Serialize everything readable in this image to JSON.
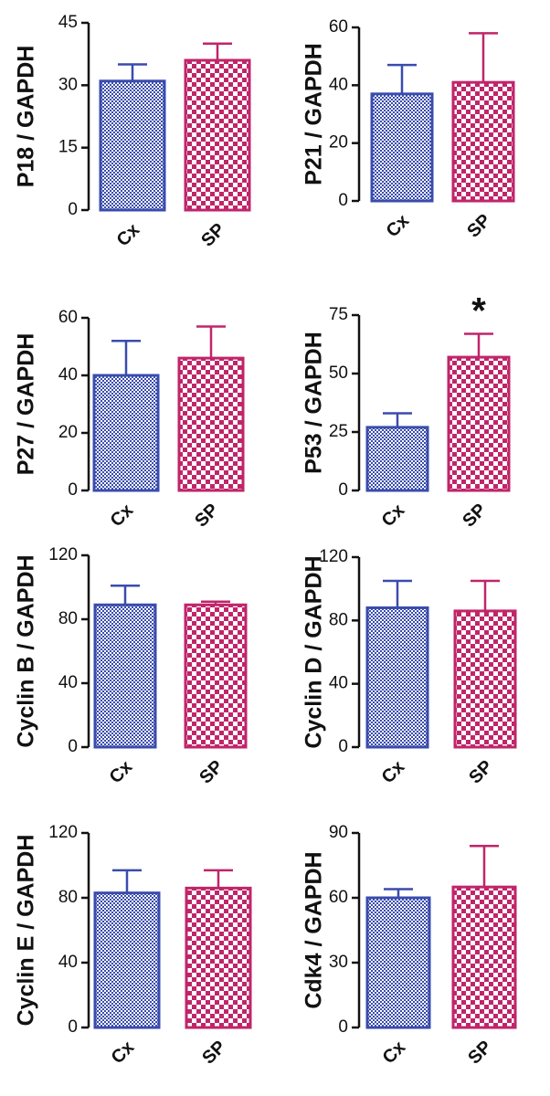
{
  "colors": {
    "cx": "#3a4cad",
    "sp": "#c0256a",
    "axis": "#111111"
  },
  "chart_data": [
    {
      "type": "bar",
      "ylabel": "P18 / GAPDH",
      "categories": [
        "Cx",
        "SP"
      ],
      "values": [
        31,
        36
      ],
      "errors": [
        4,
        4
      ],
      "ylim": [
        0,
        45
      ],
      "yticks": [
        "0",
        "15",
        "30",
        "45"
      ],
      "annotations": []
    },
    {
      "type": "bar",
      "ylabel": "P21 / GAPDH",
      "categories": [
        "Cx",
        "SP"
      ],
      "values": [
        37,
        41
      ],
      "errors": [
        10,
        17
      ],
      "ylim": [
        0,
        60
      ],
      "yticks": [
        "0",
        "20",
        "40",
        "60"
      ],
      "annotations": []
    },
    {
      "type": "bar",
      "ylabel": "P27 / GAPDH",
      "categories": [
        "Cx",
        "SP"
      ],
      "values": [
        40,
        46
      ],
      "errors": [
        12,
        11
      ],
      "ylim": [
        0,
        60
      ],
      "yticks": [
        "0",
        "20",
        "40",
        "60"
      ],
      "annotations": []
    },
    {
      "type": "bar",
      "ylabel": "P53 / GAPDH",
      "categories": [
        "Cx",
        "SP"
      ],
      "values": [
        27,
        57
      ],
      "errors": [
        6,
        10
      ],
      "ylim": [
        0,
        75
      ],
      "yticks": [
        "0",
        "25",
        "50",
        "75"
      ],
      "annotations": [
        "",
        "*"
      ]
    },
    {
      "type": "bar",
      "ylabel": "Cyclin B / GAPDH",
      "categories": [
        "Cx",
        "SP"
      ],
      "values": [
        89,
        89
      ],
      "errors": [
        12,
        2
      ],
      "ylim": [
        0,
        120
      ],
      "yticks": [
        "0",
        "40",
        "80",
        "120"
      ],
      "annotations": []
    },
    {
      "type": "bar",
      "ylabel": "Cyclin D / GAPDH",
      "categories": [
        "Cx",
        "SP"
      ],
      "values": [
        88,
        86
      ],
      "errors": [
        17,
        19
      ],
      "ylim": [
        0,
        120
      ],
      "yticks": [
        "0",
        "40",
        "80",
        "120"
      ],
      "annotations": []
    },
    {
      "type": "bar",
      "ylabel": "Cyclin E / GAPDH",
      "categories": [
        "Cx",
        "SP"
      ],
      "values": [
        83,
        86
      ],
      "errors": [
        14,
        11
      ],
      "ylim": [
        0,
        120
      ],
      "yticks": [
        "0",
        "40",
        "80",
        "120"
      ],
      "annotations": []
    },
    {
      "type": "bar",
      "ylabel": "Cdk4 / GAPDH",
      "categories": [
        "Cx",
        "SP"
      ],
      "values": [
        60,
        65
      ],
      "errors": [
        4,
        19
      ],
      "ylim": [
        0,
        90
      ],
      "yticks": [
        "0",
        "30",
        "60",
        "90"
      ],
      "annotations": []
    }
  ]
}
